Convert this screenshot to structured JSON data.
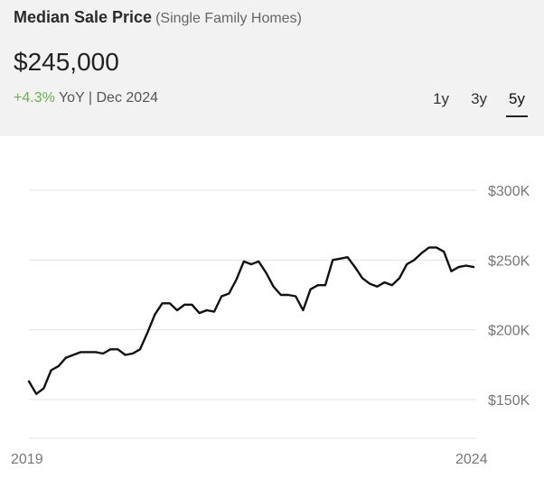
{
  "header": {
    "title": "Median Sale Price",
    "subtitle": "(Single Family Homes)",
    "price": "$245,000",
    "change": "+4.3%",
    "change_suffix": " YoY | Dec 2024",
    "tabs": [
      {
        "label": "1y",
        "active": false
      },
      {
        "label": "3y",
        "active": false
      },
      {
        "label": "5y",
        "active": true
      }
    ]
  },
  "colors": {
    "positive": "#6ab04c",
    "line": "#111111",
    "header_bg": "#f2f2f2"
  },
  "chart_data": {
    "type": "line",
    "title": "",
    "xlabel": "",
    "ylabel": "",
    "x_tick_labels": [
      "2019",
      "2024"
    ],
    "y_ticks": [
      150000,
      200000,
      250000,
      300000
    ],
    "y_tick_labels": [
      "$150K",
      "$200K",
      "$250K",
      "$300K"
    ],
    "ylim": [
      123000,
      318000
    ],
    "grid": true,
    "series": [
      {
        "values": [
          163000,
          154000,
          158000,
          171000,
          174000,
          180000,
          182000,
          184000,
          184000,
          184000,
          183000,
          186000,
          186000,
          182000,
          183000,
          186000,
          198000,
          211000,
          219000,
          219000,
          214000,
          218000,
          218000,
          212000,
          214000,
          213000,
          224000,
          226000,
          236000,
          249000,
          247000,
          249000,
          241000,
          231000,
          225000,
          225000,
          224000,
          214000,
          229000,
          232000,
          232000,
          250000,
          251000,
          252000,
          245000,
          237000,
          233000,
          231000,
          234000,
          232000,
          237000,
          247000,
          250000,
          255000,
          259000,
          259000,
          256000,
          242000,
          245000,
          246000,
          245000
        ]
      }
    ]
  }
}
